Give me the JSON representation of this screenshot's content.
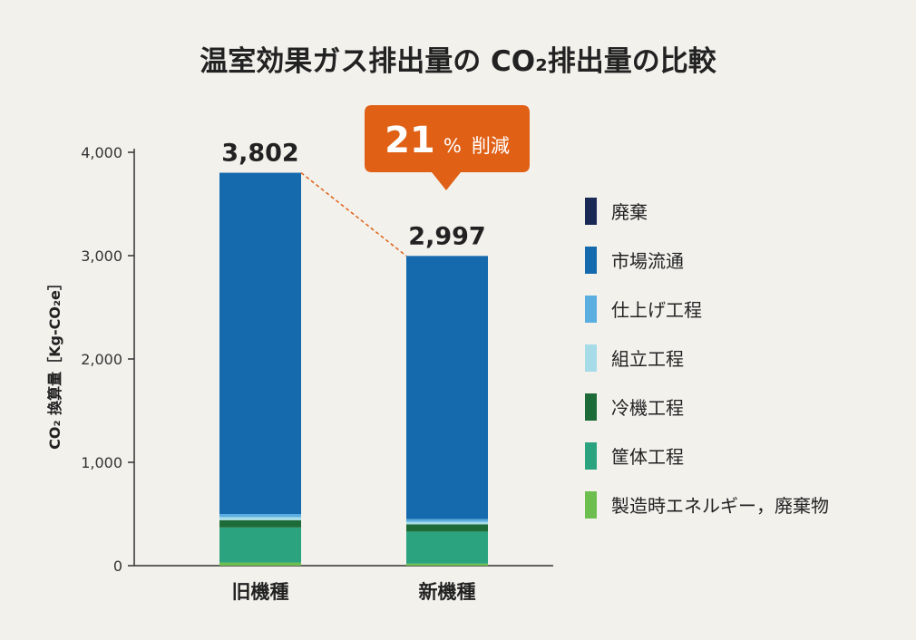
{
  "chart_data": {
    "type": "bar",
    "stacked": true,
    "title": "温室効果ガス排出量の CO₂排出量の比較",
    "ylabel": "CO₂ 換算量［Kg-CO₂e］",
    "xlabel": "",
    "ylim": [
      0,
      4000
    ],
    "yticks": [
      "0",
      "1,000",
      "2,000",
      "3,000",
      "4,000"
    ],
    "ytick_values": [
      0,
      1000,
      2000,
      3000,
      4000
    ],
    "categories": [
      "旧機種",
      "新機種"
    ],
    "totals": [
      3802,
      2997
    ],
    "total_labels": [
      "3,802",
      "2,997"
    ],
    "series": [
      {
        "name": "製造時エネルギー，廃棄物",
        "color": "#6cbf4f",
        "values": [
          30,
          20
        ]
      },
      {
        "name": "筐体工程",
        "color": "#2ba37e",
        "values": [
          340,
          310
        ]
      },
      {
        "name": "冷機工程",
        "color": "#1d6b38",
        "values": [
          70,
          70
        ]
      },
      {
        "name": "組立工程",
        "color": "#a6dbe8",
        "values": [
          30,
          25
        ]
      },
      {
        "name": "仕上げ工程",
        "color": "#5aaee0",
        "values": [
          30,
          25
        ]
      },
      {
        "name": "市場流通",
        "color": "#1569ad",
        "values": [
          3302,
          2547
        ]
      },
      {
        "name": "廃棄",
        "color": "#1a2a55",
        "values": [
          0,
          0
        ]
      }
    ],
    "legend_order": [
      "廃棄",
      "市場流通",
      "仕上げ工程",
      "組立工程",
      "冷機工程",
      "筐体工程",
      "製造時エネルギー，廃棄物"
    ],
    "legend_position": "right",
    "annotation": {
      "value": "21",
      "unit": "%",
      "text": "削減",
      "color": "#e06016",
      "connector_color": "#e06016"
    },
    "grid": false
  }
}
